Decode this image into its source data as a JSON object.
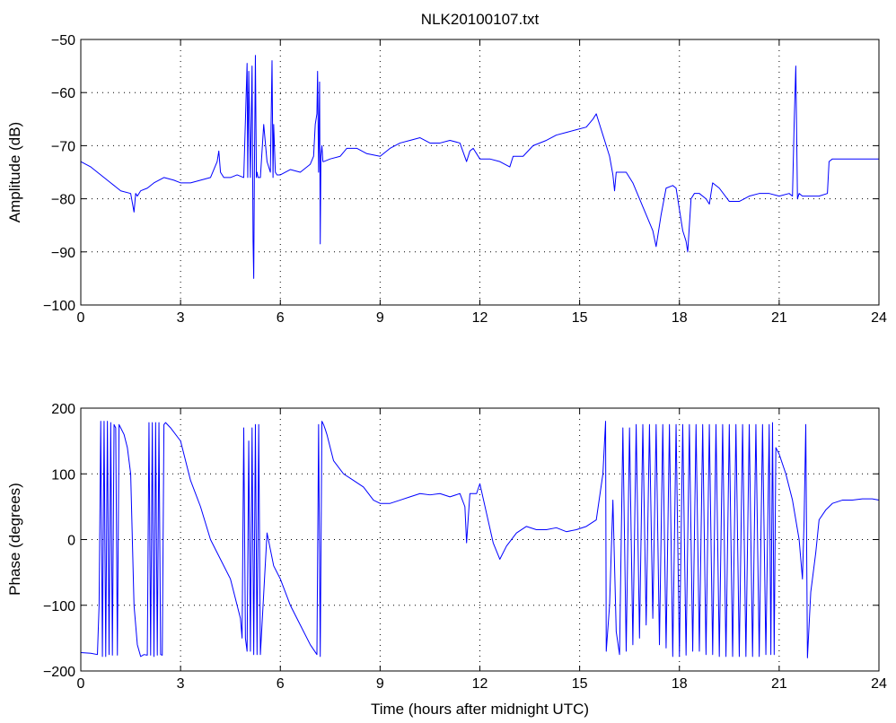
{
  "figure": {
    "background": "#ffffff",
    "line_color": "#0000ff"
  },
  "chart_data": [
    {
      "type": "line",
      "title": "NLK20100107.txt",
      "xlabel": "",
      "ylabel": "Amplitude (dB)",
      "xlim": [
        0,
        24
      ],
      "ylim": [
        -100,
        -50
      ],
      "xticks": [
        0,
        3,
        6,
        9,
        12,
        15,
        18,
        21,
        24
      ],
      "yticks": [
        -100,
        -90,
        -80,
        -70,
        -60,
        -50
      ],
      "xtick_labels": [
        "0",
        "3",
        "6",
        "9",
        "12",
        "15",
        "18",
        "21",
        "24"
      ],
      "ytick_labels": [
        "−100",
        "−90",
        "−80",
        "−70",
        "−60",
        "−50"
      ],
      "grid": true,
      "series": [
        {
          "x": [
            0,
            0.3,
            0.6,
            0.9,
            1.2,
            1.5,
            1.6,
            1.65,
            1.7,
            1.8,
            2.0,
            2.2,
            2.5,
            2.8,
            3.0,
            3.3,
            3.6,
            3.9,
            4.1,
            4.15,
            4.2,
            4.3,
            4.5,
            4.7,
            4.9,
            5.0,
            5.02,
            5.05,
            5.1,
            5.15,
            5.18,
            5.2,
            5.22,
            5.25,
            5.28,
            5.3,
            5.33,
            5.36,
            5.4,
            5.5,
            5.6,
            5.7,
            5.75,
            5.78,
            5.8,
            5.85,
            5.9,
            6.0,
            6.3,
            6.6,
            6.9,
            7.0,
            7.05,
            7.1,
            7.12,
            7.15,
            7.18,
            7.2,
            7.22,
            7.25,
            7.28,
            7.3,
            7.5,
            7.8,
            8.0,
            8.3,
            8.6,
            9.0,
            9.3,
            9.6,
            9.9,
            10.2,
            10.5,
            10.8,
            11.1,
            11.4,
            11.6,
            11.7,
            11.8,
            12.0,
            12.3,
            12.6,
            12.9,
            13.0,
            13.3,
            13.6,
            14.0,
            14.3,
            14.6,
            14.9,
            15.2,
            15.4,
            15.5,
            15.6,
            15.7,
            15.8,
            15.9,
            16.0,
            16.05,
            16.1,
            16.2,
            16.4,
            16.6,
            16.8,
            17.0,
            17.2,
            17.3,
            17.45,
            17.6,
            17.8,
            17.9,
            18.0,
            18.1,
            18.2,
            18.25,
            18.3,
            18.35,
            18.45,
            18.6,
            18.8,
            18.9,
            19.0,
            19.2,
            19.5,
            19.8,
            20.1,
            20.4,
            20.7,
            21.0,
            21.3,
            21.4,
            21.45,
            21.5,
            21.55,
            21.6,
            21.7,
            21.9,
            22.2,
            22.45,
            22.5,
            22.6,
            22.9,
            23.2,
            23.5,
            23.8,
            24.0
          ],
          "y": [
            -73,
            -74,
            -75.5,
            -77,
            -78.5,
            -79,
            -82.5,
            -79,
            -79.5,
            -78.5,
            -78,
            -77,
            -76,
            -76.5,
            -77,
            -77,
            -76.5,
            -76,
            -73,
            -71,
            -75,
            -76,
            -76,
            -75.5,
            -76,
            -54.5,
            -76,
            -56,
            -76,
            -55,
            -88,
            -95,
            -75,
            -53,
            -76,
            -75,
            -76,
            -76,
            -76,
            -66,
            -73,
            -75,
            -54,
            -76,
            -66,
            -75,
            -75.5,
            -75.5,
            -74.5,
            -75,
            -73.5,
            -72,
            -66,
            -64,
            -56,
            -75,
            -58,
            -88.5,
            -72,
            -70,
            -73,
            -73,
            -72.5,
            -72,
            -70.5,
            -70.5,
            -71.5,
            -72,
            -70.5,
            -69.5,
            -69,
            -68.5,
            -69.5,
            -69.5,
            -69,
            -69.5,
            -73,
            -71,
            -70.5,
            -72.5,
            -72.5,
            -73,
            -74,
            -72,
            -72,
            -70,
            -69,
            -68,
            -67.5,
            -67,
            -66.5,
            -65,
            -64,
            -66,
            -68,
            -70,
            -72,
            -75.5,
            -78.5,
            -75,
            -75,
            -75,
            -77,
            -80,
            -83,
            -86,
            -89,
            -83,
            -78,
            -77.5,
            -78,
            -82,
            -86,
            -88,
            -90,
            -85,
            -80,
            -79,
            -79,
            -80,
            -81,
            -77,
            -78,
            -80.5,
            -80.5,
            -79.5,
            -79,
            -79,
            -79.5,
            -79,
            -79.5,
            -66,
            -55,
            -80,
            -79,
            -79.5,
            -79.5,
            -79.5,
            -79,
            -73,
            -72.5,
            -72.5,
            -72.5,
            -72.5,
            -72.5,
            -72.5
          ]
        }
      ]
    },
    {
      "type": "line",
      "title": "",
      "xlabel": "Time (hours after midnight UTC)",
      "ylabel": "Phase (degrees)",
      "xlim": [
        0,
        24
      ],
      "ylim": [
        -200,
        200
      ],
      "xticks": [
        0,
        3,
        6,
        9,
        12,
        15,
        18,
        21,
        24
      ],
      "yticks": [
        -200,
        -100,
        0,
        100,
        200
      ],
      "xtick_labels": [
        "0",
        "3",
        "6",
        "9",
        "12",
        "15",
        "18",
        "21",
        "24"
      ],
      "ytick_labels": [
        "−200",
        "−100",
        "0",
        "100",
        "200"
      ],
      "grid": true,
      "series": [
        {
          "x": [
            0,
            0.3,
            0.5,
            0.55,
            0.6,
            0.65,
            0.7,
            0.75,
            0.8,
            0.85,
            0.9,
            0.95,
            1.0,
            1.05,
            1.1,
            1.15,
            1.2,
            1.3,
            1.4,
            1.5,
            1.6,
            1.7,
            1.8,
            1.9,
            2.0,
            2.05,
            2.1,
            2.15,
            2.2,
            2.25,
            2.3,
            2.35,
            2.4,
            2.45,
            2.5,
            2.55,
            2.7,
            3.0,
            3.3,
            3.6,
            3.9,
            4.2,
            4.5,
            4.7,
            4.8,
            4.85,
            4.9,
            4.95,
            5.0,
            5.05,
            5.1,
            5.15,
            5.2,
            5.25,
            5.3,
            5.35,
            5.4,
            5.6,
            5.8,
            6.0,
            6.3,
            6.6,
            6.9,
            7.1,
            7.15,
            7.2,
            7.25,
            7.3,
            7.35,
            7.4,
            7.6,
            7.9,
            8.2,
            8.5,
            8.8,
            9.0,
            9.3,
            9.6,
            9.9,
            10.2,
            10.5,
            10.8,
            11.1,
            11.4,
            11.55,
            11.6,
            11.7,
            11.9,
            12.0,
            12.2,
            12.4,
            12.6,
            12.8,
            13.1,
            13.4,
            13.7,
            14.0,
            14.3,
            14.6,
            14.9,
            15.2,
            15.5,
            15.7,
            15.78,
            15.8,
            15.9,
            16.0,
            16.1,
            16.2,
            16.3,
            16.4,
            16.5,
            16.6,
            16.7,
            16.8,
            16.9,
            17.0,
            17.1,
            17.2,
            17.3,
            17.4,
            17.5,
            17.6,
            17.7,
            17.8,
            17.9,
            18.0,
            18.1,
            18.2,
            18.3,
            18.4,
            18.5,
            18.6,
            18.7,
            18.8,
            18.9,
            19.0,
            19.1,
            19.2,
            19.3,
            19.4,
            19.5,
            19.6,
            19.7,
            19.8,
            19.9,
            20.0,
            20.1,
            20.2,
            20.3,
            20.4,
            20.5,
            20.6,
            20.7,
            20.75,
            20.8,
            20.85,
            20.9,
            21.0,
            21.2,
            21.4,
            21.6,
            21.7,
            21.75,
            21.8,
            21.85,
            21.9,
            21.95,
            22.0,
            22.1,
            22.2,
            22.4,
            22.6,
            22.9,
            23.2,
            23.5,
            23.8,
            24.0
          ],
          "y": [
            -172,
            -173,
            -175,
            -100,
            180,
            -178,
            180,
            -178,
            180,
            -175,
            178,
            -176,
            175,
            170,
            -176,
            175,
            170,
            160,
            140,
            100,
            -100,
            -160,
            -178,
            -175,
            -176,
            178,
            -176,
            178,
            -178,
            178,
            -176,
            178,
            -175,
            -176,
            175,
            178,
            170,
            150,
            90,
            50,
            0,
            -30,
            -60,
            -100,
            -120,
            -150,
            170,
            -150,
            -170,
            150,
            -170,
            170,
            -175,
            175,
            -175,
            175,
            -175,
            10,
            -40,
            -60,
            -100,
            -130,
            -160,
            -175,
            175,
            -178,
            180,
            175,
            168,
            160,
            120,
            100,
            90,
            80,
            60,
            55,
            55,
            60,
            65,
            70,
            68,
            70,
            65,
            70,
            50,
            -5,
            70,
            70,
            85,
            40,
            -5,
            -30,
            -10,
            10,
            20,
            15,
            15,
            18,
            12,
            15,
            20,
            30,
            100,
            180,
            -170,
            -100,
            60,
            -140,
            -175,
            170,
            -170,
            170,
            -160,
            175,
            -150,
            175,
            -130,
            175,
            -120,
            175,
            -160,
            175,
            -165,
            175,
            -178,
            175,
            -178,
            175,
            -176,
            175,
            -170,
            175,
            -170,
            175,
            -175,
            175,
            -175,
            175,
            -178,
            175,
            -178,
            175,
            -178,
            175,
            -178,
            175,
            -178,
            175,
            -178,
            175,
            -178,
            175,
            -175,
            175,
            -175,
            178,
            -175,
            140,
            130,
            100,
            60,
            0,
            -60,
            30,
            175,
            -180,
            -130,
            -80,
            -60,
            -20,
            30,
            45,
            55,
            60,
            60,
            62,
            62,
            60
          ]
        }
      ]
    }
  ]
}
